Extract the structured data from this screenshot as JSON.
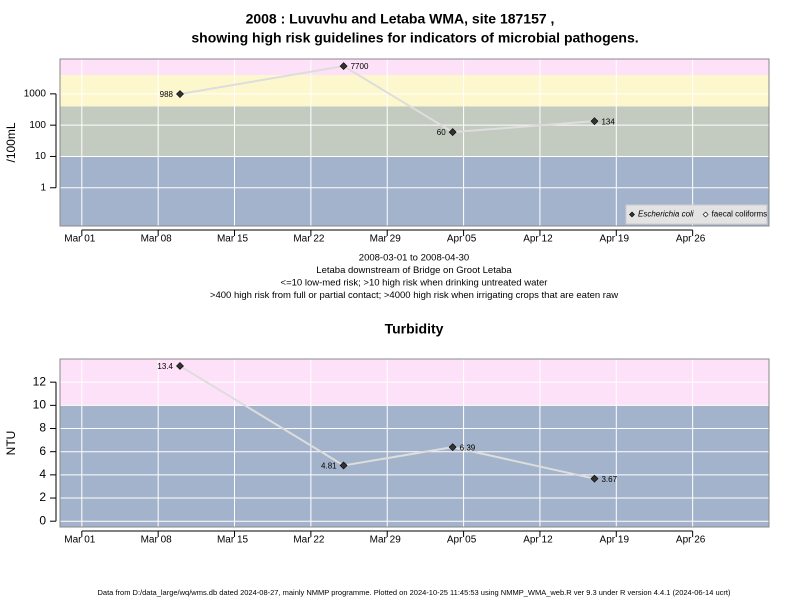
{
  "chart_data": [
    {
      "type": "line",
      "title": "2008 : Luvuvhu and Letaba WMA, site 187157 ,",
      "subtitle": "showing high risk guidelines for indicators of microbial pathogens.",
      "y_label": "/100mL",
      "log_y": true,
      "x": [
        "2008-03-10",
        "2008-03-25",
        "2008-04-04",
        "2008-04-17"
      ],
      "series": [
        {
          "name": "Escherichia coli",
          "color": "#333333",
          "values": [
            988,
            7700,
            60,
            134
          ]
        },
        {
          "name": "faecal coliforms",
          "color": "#ffffff",
          "values": [
            null,
            null,
            null,
            null
          ]
        }
      ],
      "line_color": "#dddddd",
      "xlim": [
        "2008-02-28",
        "2008-05-03"
      ],
      "xticks": [
        {
          "value": "2008-03-01",
          "label": "Mar 01"
        },
        {
          "value": "2008-03-08",
          "label": "Mar 08"
        },
        {
          "value": "2008-03-15",
          "label": "Mar 15"
        },
        {
          "value": "2008-03-22",
          "label": "Mar 22"
        },
        {
          "value": "2008-03-29",
          "label": "Mar 29"
        },
        {
          "value": "2008-04-05",
          "label": "Apr 05"
        },
        {
          "value": "2008-04-12",
          "label": "Apr 12"
        },
        {
          "value": "2008-04-19",
          "label": "Apr 19"
        },
        {
          "value": "2008-04-26",
          "label": "Apr 26"
        }
      ],
      "ylim": [
        0.06,
        13000
      ],
      "yticks": [
        1,
        10,
        100,
        1000
      ],
      "thresholds": [
        10,
        400,
        4000
      ],
      "band_colors": [
        "#a3b3cb",
        "#c3cbc0",
        "#fdf7cd",
        "#fde1f8"
      ],
      "grid": true,
      "legend": "lower right",
      "annotations": [
        "2008-03-01 to 2008-04-30",
        "Letaba downstream of Bridge on Groot Letaba",
        "<=10 low-med risk; >10 high risk when drinking untreated water",
        ">400 high risk from full or partial contact; >4000 high risk when irrigating crops that are eaten raw"
      ]
    },
    {
      "type": "line",
      "title": "Turbidity",
      "y_label": "NTU",
      "log_y": false,
      "x": [
        "2008-03-10",
        "2008-03-25",
        "2008-04-04",
        "2008-04-17"
      ],
      "series": [
        {
          "name": "Turbidity",
          "color": "#333333",
          "values": [
            13.4,
            4.81,
            6.39,
            3.67
          ]
        }
      ],
      "line_color": "#dddddd",
      "xlim": [
        "2008-02-28",
        "2008-05-03"
      ],
      "xticks": [
        {
          "value": "2008-03-01",
          "label": "Mar 01"
        },
        {
          "value": "2008-03-08",
          "label": "Mar 08"
        },
        {
          "value": "2008-03-15",
          "label": "Mar 15"
        },
        {
          "value": "2008-03-22",
          "label": "Mar 22"
        },
        {
          "value": "2008-03-29",
          "label": "Mar 29"
        },
        {
          "value": "2008-04-05",
          "label": "Apr 05"
        },
        {
          "value": "2008-04-12",
          "label": "Apr 12"
        },
        {
          "value": "2008-04-19",
          "label": "Apr 19"
        },
        {
          "value": "2008-04-26",
          "label": "Apr 26"
        }
      ],
      "ylim": [
        -0.5,
        14
      ],
      "yticks": [
        0,
        2,
        4,
        6,
        8,
        10,
        12
      ],
      "thresholds": [
        10
      ],
      "band_colors": [
        "#a3b3cb",
        "#fde1f8"
      ],
      "grid": true
    }
  ],
  "footer": "Data from D:/data_large/wq/wms.db dated 2024-08-27, mainly NMMP programme. Plotted on 2024-10-25 11:45:53 using NMMP_WMA_web.R ver 9.3 under R version 4.4.1 (2024-06-14 ucrt)"
}
